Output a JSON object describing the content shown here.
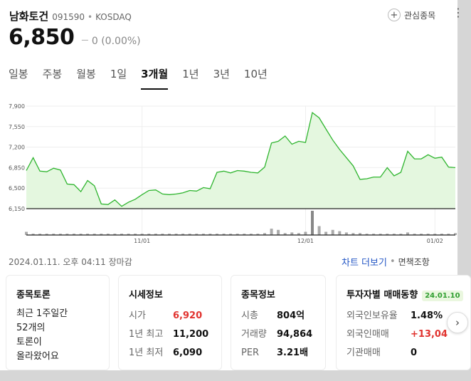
{
  "stock": {
    "name": "남화토건",
    "code": "091590",
    "separator": "•",
    "market": "KOSDAQ",
    "price": "6,850",
    "change_symbol": "—",
    "change": "0 (0.00%)"
  },
  "favorite": {
    "plus": "+",
    "label": "관심종목"
  },
  "more_icon": "⋮",
  "tabs": [
    {
      "label": "일봉",
      "active": false
    },
    {
      "label": "주봉",
      "active": false
    },
    {
      "label": "월봉",
      "active": false
    },
    {
      "label": "1일",
      "active": false
    },
    {
      "label": "3개월",
      "active": true
    },
    {
      "label": "1년",
      "active": false
    },
    {
      "label": "3년",
      "active": false
    },
    {
      "label": "10년",
      "active": false
    }
  ],
  "chart_data": {
    "type": "area",
    "y_ticks": [
      "7,900",
      "7,550",
      "7,200",
      "6,850",
      "6,500",
      "6,150"
    ],
    "x_ticks": [
      "11/01",
      "12/01",
      "01/02"
    ],
    "ylim": [
      6150,
      7900
    ],
    "grid": true,
    "line_color": "#2fb52f",
    "fill_color": "#e4f7df",
    "values": [
      6800,
      7020,
      6790,
      6780,
      6840,
      6810,
      6570,
      6560,
      6440,
      6630,
      6540,
      6230,
      6220,
      6300,
      6190,
      6260,
      6310,
      6390,
      6460,
      6470,
      6400,
      6390,
      6400,
      6420,
      6460,
      6450,
      6510,
      6490,
      6770,
      6790,
      6760,
      6800,
      6790,
      6770,
      6760,
      6860,
      7270,
      7300,
      7390,
      7250,
      7300,
      7280,
      7790,
      7700,
      7510,
      7320,
      7160,
      7020,
      6880,
      6650,
      6660,
      6690,
      6690,
      6850,
      6710,
      6770,
      7130,
      7000,
      7000,
      7070,
      7010,
      7030,
      6860,
      6850
    ],
    "volume": [
      5,
      2,
      2,
      2,
      2,
      2,
      2,
      2,
      2,
      2,
      2,
      2,
      2,
      2,
      2,
      2,
      2,
      2,
      2,
      2,
      2,
      2,
      2,
      2,
      2,
      2,
      2,
      2,
      2,
      2,
      2,
      2,
      2,
      2,
      2,
      3,
      10,
      8,
      3,
      4,
      3,
      5,
      38,
      14,
      5,
      8,
      6,
      4,
      3,
      3,
      2,
      2,
      2,
      2,
      2,
      2,
      4,
      2,
      2,
      2,
      2,
      2,
      2,
      3
    ],
    "x_tick_positions": [
      17,
      41,
      60
    ]
  },
  "date_status": "2024.01.11. 오후 04:11 장마감",
  "links": {
    "detail": "차트 더보기",
    "sep": "•",
    "lookup": "면책조항"
  },
  "cards": {
    "discussion": {
      "title": "종목토론",
      "lines": [
        "최근 1주일간",
        "52개의",
        "토론이",
        "올라왔어요"
      ]
    },
    "market": {
      "title": "시세정보",
      "rows": [
        {
          "label": "시가",
          "value": "6,920"
        },
        {
          "label": "1년 최고",
          "value": "11,200"
        },
        {
          "label": "1년 최저",
          "value": "6,090"
        }
      ]
    },
    "info": {
      "title": "종목정보",
      "rows": [
        {
          "label": "시총",
          "value": "804억"
        },
        {
          "label": "거래량",
          "value": "94,864"
        },
        {
          "label": "PER",
          "value": "3.21배"
        }
      ]
    },
    "investor": {
      "title": "투자자별 매매동향",
      "badge": "24.01.10",
      "rows": [
        {
          "label": "외국인보유율",
          "value": "1.48%"
        },
        {
          "label": "외국인매매",
          "value": "+13,04"
        },
        {
          "label": "기관매매",
          "value": "0"
        }
      ]
    }
  },
  "next_icon": "›"
}
